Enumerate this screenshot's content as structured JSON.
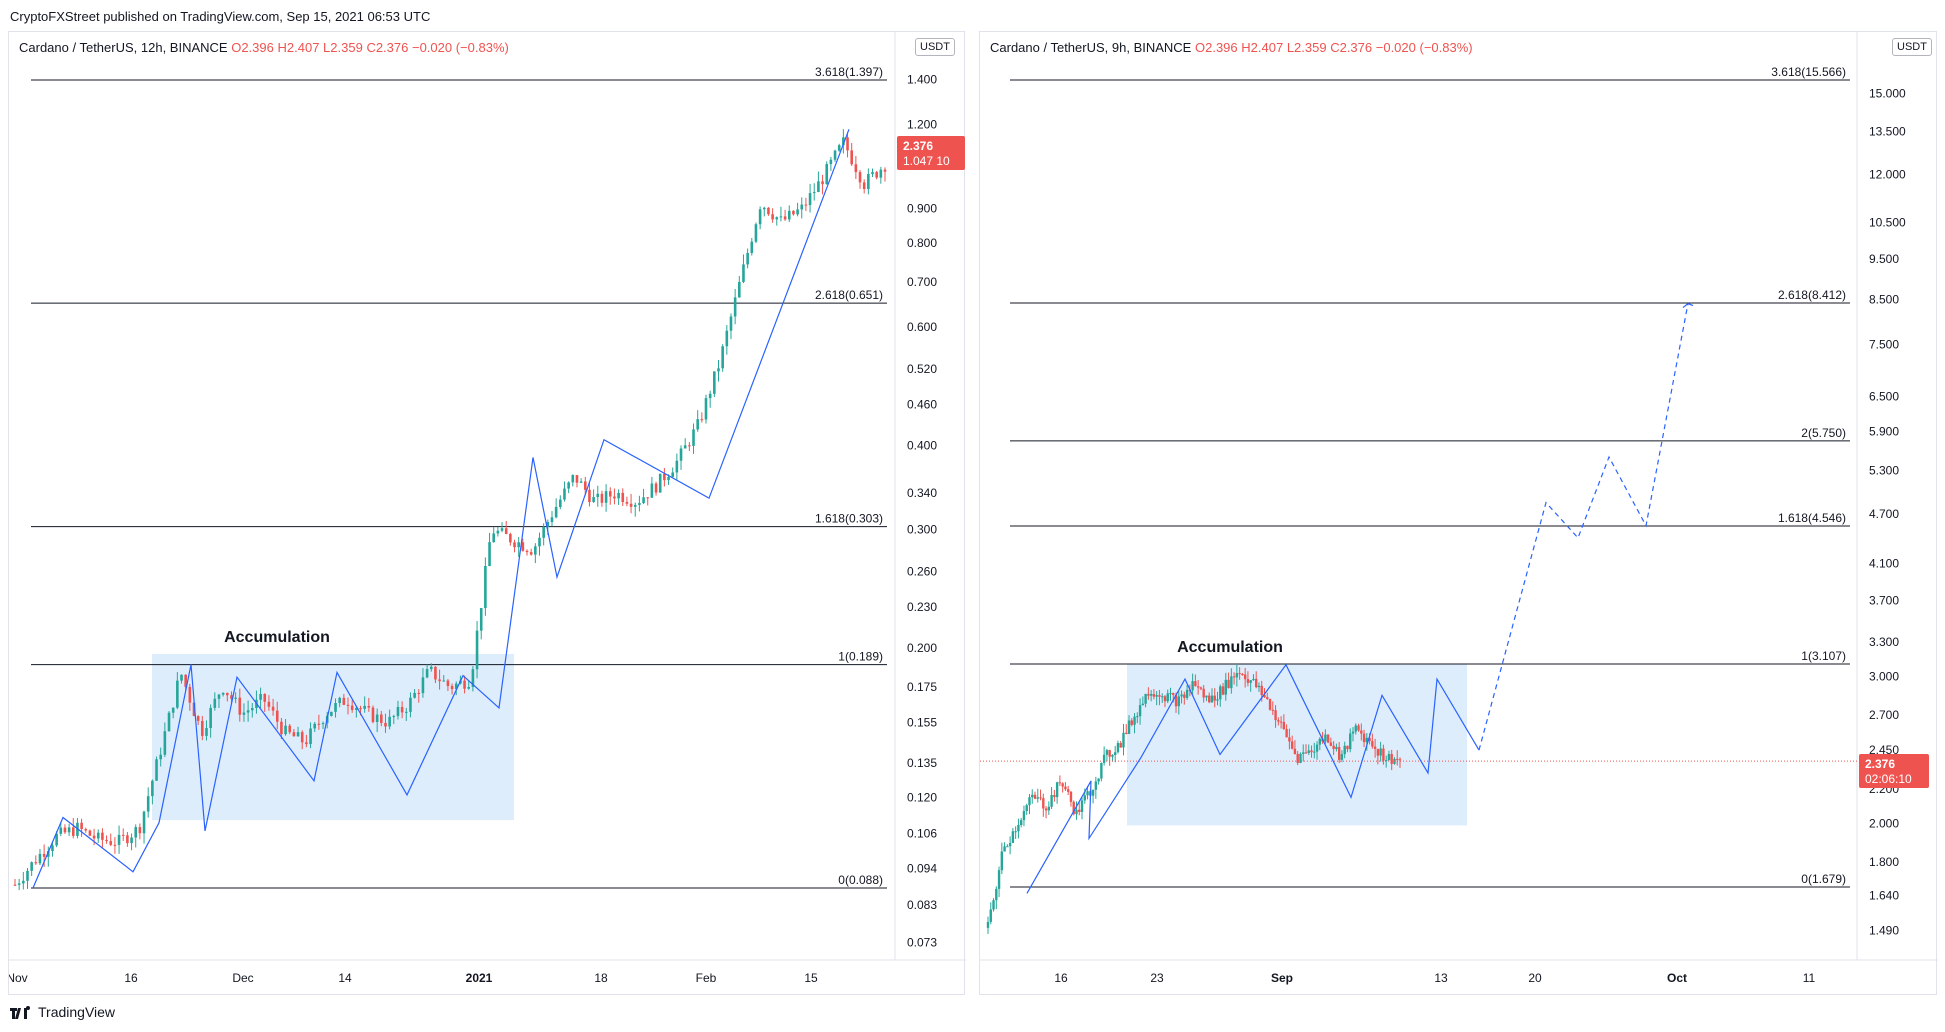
{
  "publisher_line": "CryptoFXStreet published on TradingView.com, Sep 15, 2021 06:53 UTC",
  "brand": "TradingView",
  "colors": {
    "up": "#26a69a",
    "down": "#ef5350",
    "wave": "#2962ff",
    "zone": "#cfe6fb",
    "level": "#131722",
    "price_tag": "#ef5350"
  },
  "chart_data": [
    {
      "type": "candlestick",
      "header": {
        "label": "Cardano / TetherUS, 12h, BINANCE",
        "o": "O2.396",
        "h": "H2.407",
        "l": "L2.359",
        "c": "C2.376",
        "chg": "−0.020 (−0.83%)"
      },
      "currency": "USDT",
      "scale": "log",
      "y_ticks": [
        "1.400",
        "1.200",
        "0.900",
        "0.800",
        "0.700",
        "0.600",
        "0.520",
        "0.460",
        "0.400",
        "0.340",
        "0.300",
        "0.260",
        "0.230",
        "0.200",
        "0.175",
        "0.155",
        "0.135",
        "0.120",
        "0.106",
        "0.094",
        "0.083",
        "0.073"
      ],
      "x_ticks": [
        "Nov",
        "16",
        "Dec",
        "14",
        "2021",
        "18",
        "Feb",
        "15"
      ],
      "fib_levels": [
        {
          "label": "3.618(1.397)",
          "value": 1.397
        },
        {
          "label": "2.618(0.651)",
          "value": 0.651
        },
        {
          "label": "1.618(0.303)",
          "value": 0.303
        },
        {
          "label": "1(0.189)",
          "value": 0.189
        },
        {
          "label": "0(0.088)",
          "value": 0.088
        }
      ],
      "annotation": "Accumulation",
      "price_tag": [
        "2.376",
        "1.047 10"
      ],
      "wave_path": [
        0.088,
        0.112,
        0.093,
        0.11,
        0.189,
        0.107,
        0.181,
        0.127,
        0.184,
        0.121,
        0.182,
        0.163,
        0.384,
        0.255,
        0.408,
        0.334,
        1.18
      ],
      "close_path": [
        0.089,
        0.097,
        0.105,
        0.108,
        0.104,
        0.103,
        0.108,
        0.14,
        0.184,
        0.15,
        0.176,
        0.16,
        0.168,
        0.15,
        0.145,
        0.16,
        0.168,
        0.16,
        0.155,
        0.165,
        0.185,
        0.175,
        0.18,
        0.3,
        0.29,
        0.28,
        0.32,
        0.36,
        0.33,
        0.34,
        0.33,
        0.35,
        0.38,
        0.43,
        0.53,
        0.7,
        0.92,
        0.86,
        0.9,
        1.0,
        1.13,
        0.98,
        1.047
      ]
    },
    {
      "type": "candlestick",
      "header": {
        "label": "Cardano / TetherUS, 9h, BINANCE",
        "o": "O2.396",
        "h": "H2.407",
        "l": "L2.359",
        "c": "C2.376",
        "chg": "−0.020 (−0.83%)"
      },
      "currency": "USDT",
      "scale": "log",
      "y_ticks": [
        "15.000",
        "13.500",
        "12.000",
        "10.500",
        "9.500",
        "8.500",
        "7.500",
        "6.500",
        "5.900",
        "5.300",
        "4.700",
        "4.100",
        "3.700",
        "3.300",
        "3.000",
        "2.700",
        "2.450",
        "2.200",
        "2.000",
        "1.800",
        "1.640",
        "1.490"
      ],
      "x_ticks": [
        "16",
        "23",
        "Sep",
        "13",
        "20",
        "Oct",
        "11"
      ],
      "fib_levels": [
        {
          "label": "3.618(15.566)",
          "value": 15.566
        },
        {
          "label": "2.618(8.412)",
          "value": 8.412
        },
        {
          "label": "2(5.750)",
          "value": 5.75
        },
        {
          "label": "1.618(4.546)",
          "value": 4.546
        },
        {
          "label": "1(3.107)",
          "value": 3.107
        },
        {
          "label": "0(1.679)",
          "value": 1.679
        }
      ],
      "annotation": "Accumulation",
      "price_tag": [
        "2.376",
        "02:06:10"
      ],
      "current_price": 2.376,
      "wave_path": [
        1.65,
        2.25,
        1.92,
        2.4,
        2.98,
        2.42,
        3.1,
        2.15,
        2.85,
        2.3,
        2.98,
        2.45
      ],
      "projection_path": [
        2.45,
        4.85,
        4.4,
        5.5,
        4.55,
        8.4
      ],
      "close_path": [
        1.5,
        1.85,
        2.0,
        2.15,
        2.1,
        2.25,
        2.05,
        2.2,
        2.4,
        2.5,
        2.7,
        2.9,
        2.85,
        2.8,
        2.95,
        2.8,
        2.9,
        3.05,
        2.95,
        2.8,
        2.6,
        2.4,
        2.45,
        2.55,
        2.4,
        2.6,
        2.5,
        2.4,
        2.38
      ]
    }
  ]
}
